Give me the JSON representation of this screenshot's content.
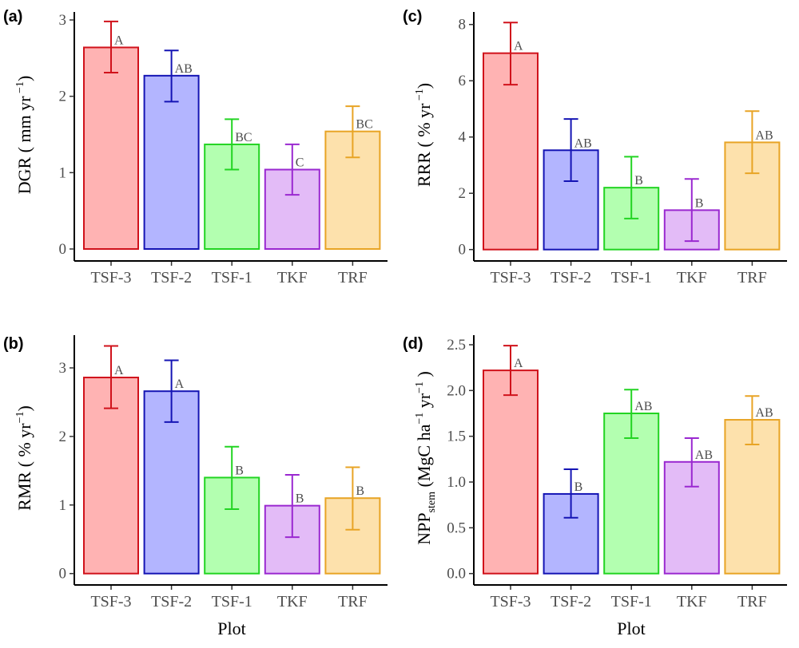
{
  "chart_data": [
    {
      "type": "bar",
      "panel": "(a)",
      "ylabel_main": "DGR ( mm yr",
      "ylabel_sup": " −1",
      "ylabel_end": ")",
      "xlabel": "",
      "categories": [
        "TSF-3",
        "TSF-2",
        "TSF-1",
        "TKF",
        "TRF"
      ],
      "values": [
        2.64,
        2.27,
        1.37,
        1.04,
        1.54
      ],
      "error_low": [
        2.31,
        1.93,
        1.04,
        0.71,
        1.2
      ],
      "error_high": [
        2.98,
        2.6,
        1.7,
        1.37,
        1.87
      ],
      "significance": [
        "A",
        "AB",
        "BC",
        "C",
        "BC"
      ],
      "yticks": [
        0,
        1,
        2,
        3
      ],
      "ytick_labels": [
        "0",
        "1",
        "2",
        "3"
      ],
      "ylim": [
        -0.14,
        3.1
      ]
    },
    {
      "type": "bar",
      "panel": "(c)",
      "ylabel_main": "RRR ( %  yr",
      "ylabel_sup": " −1",
      "ylabel_end": ")",
      "xlabel": "",
      "categories": [
        "TSF-3",
        "TSF-2",
        "TSF-1",
        "TKF",
        "TRF"
      ],
      "values": [
        6.98,
        3.53,
        2.2,
        1.4,
        3.81
      ],
      "error_low": [
        5.86,
        2.43,
        1.1,
        0.3,
        2.71
      ],
      "error_high": [
        8.07,
        4.64,
        3.3,
        2.51,
        4.92
      ],
      "significance": [
        "A",
        "AB",
        "B",
        "B",
        "AB"
      ],
      "yticks": [
        0,
        2,
        4,
        6,
        8
      ],
      "ytick_labels": [
        "0",
        "2",
        "4",
        "6",
        "8"
      ],
      "ylim": [
        -0.4,
        8.45
      ]
    },
    {
      "type": "bar",
      "panel": "(b)",
      "ylabel_main": "RMR ( %  yr",
      "ylabel_sup": "−1",
      "ylabel_end": ")",
      "xlabel": "Plot",
      "categories": [
        "TSF-3",
        "TSF-2",
        "TSF-1",
        "TKF",
        "TRF"
      ],
      "values": [
        2.86,
        2.66,
        1.4,
        0.99,
        1.1
      ],
      "error_low": [
        2.41,
        2.21,
        0.94,
        0.53,
        0.64
      ],
      "error_high": [
        3.32,
        3.11,
        1.85,
        1.44,
        1.55
      ],
      "significance": [
        "A",
        "A",
        "B",
        "B",
        "B"
      ],
      "yticks": [
        0,
        1,
        2,
        3
      ],
      "ytick_labels": [
        "0",
        "1",
        "2",
        "3"
      ],
      "ylim": [
        -0.16,
        3.48
      ]
    },
    {
      "type": "bar",
      "panel": "(d)",
      "ylabel_main": "NPP",
      "ylabel_sub": "stem",
      "ylabel_rest": " (MgC ha",
      "ylabel_sup": "−1",
      "ylabel_rest2": " yr",
      "ylabel_sup2": "−1",
      "ylabel_end": " )",
      "xlabel": "Plot",
      "categories": [
        "TSF-3",
        "TSF-2",
        "TSF-1",
        "TKF",
        "TRF"
      ],
      "values": [
        2.22,
        0.87,
        1.75,
        1.22,
        1.68
      ],
      "error_low": [
        1.95,
        0.61,
        1.48,
        0.95,
        1.41
      ],
      "error_high": [
        2.49,
        1.14,
        2.01,
        1.48,
        1.94
      ],
      "significance": [
        "A",
        "B",
        "AB",
        "AB",
        "AB"
      ],
      "yticks": [
        0.0,
        0.5,
        1.0,
        1.5,
        2.0,
        2.5
      ],
      "ytick_labels": [
        "0.0",
        "0.5",
        "1.0",
        "1.5",
        "2.0",
        "2.5"
      ],
      "ylim": [
        -0.12,
        2.6
      ]
    }
  ],
  "colors": {
    "stroke": [
      "#d0121b",
      "#1414b4",
      "#22d422",
      "#9a28d0",
      "#e8a425"
    ],
    "fill": [
      "#ffb3b3",
      "#b3b5ff",
      "#b3ffb0",
      "#e3bbf7",
      "#fde1ac"
    ]
  }
}
